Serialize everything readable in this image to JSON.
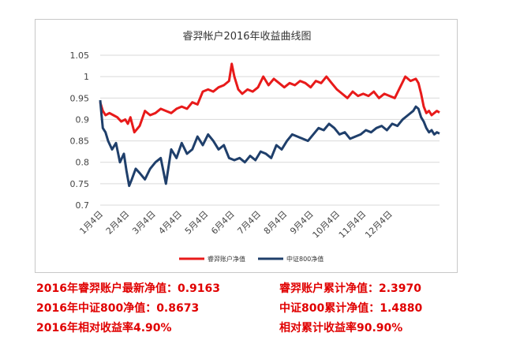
{
  "chart_data": {
    "type": "line",
    "title": "睿羿帐户2016年收益曲线图",
    "xlabel": "",
    "ylabel": "",
    "ylim": [
      0.7,
      1.05
    ],
    "yticks": [
      "1.05",
      "1",
      "0.95",
      "0.9",
      "0.85",
      "0.8",
      "0.75",
      "0.7"
    ],
    "yticks_values": [
      1.05,
      1.0,
      0.95,
      0.9,
      0.85,
      0.8,
      0.75,
      0.7
    ],
    "xticks": [
      "1月4日",
      "2月4日",
      "3月4日",
      "4月4日",
      "5月4日",
      "6月4日",
      "7月4日",
      "8月4日",
      "9月4日",
      "10月4日",
      "11月4日",
      "12月4日"
    ],
    "x_range": [
      0,
      12.9
    ],
    "grid": "horizontal",
    "legend_position": "bottom",
    "series": [
      {
        "name": "睿羿账户净值",
        "color": "#e81a1a",
        "x": [
          0,
          0.1,
          0.2,
          0.35,
          0.5,
          0.65,
          0.8,
          0.95,
          1.05,
          1.15,
          1.3,
          1.5,
          1.7,
          1.9,
          2.1,
          2.3,
          2.5,
          2.7,
          2.9,
          3.1,
          3.3,
          3.5,
          3.7,
          3.9,
          4.1,
          4.3,
          4.5,
          4.7,
          4.9,
          5.0,
          5.1,
          5.25,
          5.4,
          5.6,
          5.8,
          6.0,
          6.2,
          6.4,
          6.6,
          6.8,
          7.0,
          7.2,
          7.4,
          7.6,
          7.8,
          8.0,
          8.2,
          8.4,
          8.6,
          8.8,
          9.0,
          9.2,
          9.4,
          9.6,
          9.8,
          10.0,
          10.2,
          10.4,
          10.6,
          10.8,
          11.0,
          11.2,
          11.4,
          11.6,
          11.8,
          12.0,
          12.1,
          12.2,
          12.3,
          12.4,
          12.5,
          12.6,
          12.7,
          12.8,
          12.9
        ],
        "values": [
          0.94,
          0.92,
          0.91,
          0.915,
          0.91,
          0.905,
          0.895,
          0.9,
          0.89,
          0.905,
          0.87,
          0.885,
          0.92,
          0.91,
          0.915,
          0.925,
          0.92,
          0.915,
          0.925,
          0.93,
          0.925,
          0.94,
          0.935,
          0.965,
          0.97,
          0.965,
          0.975,
          0.98,
          0.99,
          1.03,
          1.0,
          0.97,
          0.96,
          0.97,
          0.965,
          0.975,
          1.0,
          0.98,
          0.995,
          0.985,
          0.975,
          0.985,
          0.98,
          0.99,
          0.985,
          0.975,
          0.99,
          0.985,
          1.0,
          0.985,
          0.97,
          0.96,
          0.95,
          0.965,
          0.955,
          0.96,
          0.955,
          0.965,
          0.95,
          0.96,
          0.955,
          0.95,
          0.975,
          1.0,
          0.99,
          0.995,
          0.985,
          0.96,
          0.93,
          0.915,
          0.92,
          0.91,
          0.915,
          0.92,
          0.916
        ]
      },
      {
        "name": "中证800净值",
        "color": "#1f3f6b",
        "x": [
          0,
          0.05,
          0.1,
          0.2,
          0.3,
          0.45,
          0.6,
          0.75,
          0.9,
          1.0,
          1.1,
          1.2,
          1.35,
          1.5,
          1.7,
          1.9,
          2.1,
          2.3,
          2.5,
          2.7,
          2.9,
          3.1,
          3.3,
          3.5,
          3.7,
          3.9,
          4.1,
          4.3,
          4.5,
          4.7,
          4.9,
          5.1,
          5.3,
          5.5,
          5.7,
          5.9,
          6.1,
          6.3,
          6.5,
          6.7,
          6.9,
          7.1,
          7.3,
          7.5,
          7.7,
          7.9,
          8.1,
          8.3,
          8.5,
          8.7,
          8.9,
          9.1,
          9.3,
          9.5,
          9.7,
          9.9,
          10.1,
          10.3,
          10.5,
          10.7,
          10.9,
          11.1,
          11.3,
          11.5,
          11.7,
          11.9,
          12.0,
          12.1,
          12.2,
          12.3,
          12.4,
          12.5,
          12.6,
          12.7,
          12.8,
          12.9
        ],
        "values": [
          0.945,
          0.91,
          0.88,
          0.87,
          0.85,
          0.83,
          0.845,
          0.8,
          0.82,
          0.78,
          0.745,
          0.76,
          0.785,
          0.775,
          0.76,
          0.785,
          0.8,
          0.81,
          0.75,
          0.83,
          0.81,
          0.845,
          0.82,
          0.83,
          0.86,
          0.84,
          0.865,
          0.85,
          0.83,
          0.84,
          0.81,
          0.805,
          0.81,
          0.8,
          0.815,
          0.805,
          0.825,
          0.82,
          0.81,
          0.84,
          0.83,
          0.85,
          0.865,
          0.86,
          0.855,
          0.85,
          0.865,
          0.88,
          0.875,
          0.89,
          0.88,
          0.865,
          0.87,
          0.855,
          0.86,
          0.865,
          0.875,
          0.87,
          0.88,
          0.885,
          0.875,
          0.89,
          0.885,
          0.9,
          0.91,
          0.92,
          0.93,
          0.925,
          0.905,
          0.895,
          0.88,
          0.87,
          0.875,
          0.865,
          0.87,
          0.867
        ]
      }
    ]
  },
  "stats": {
    "row1_left": "2016年睿羿账户最新净值：0.9163",
    "row1_right": "睿羿账户累计净值：2.3970",
    "row2_left": "2016年中证800净值：0.8673",
    "row2_right": "中证800累计净值：1.4880",
    "row3_left": "2016年相对收益率4.90%",
    "row3_right": "相对累计收益率90.90%"
  }
}
